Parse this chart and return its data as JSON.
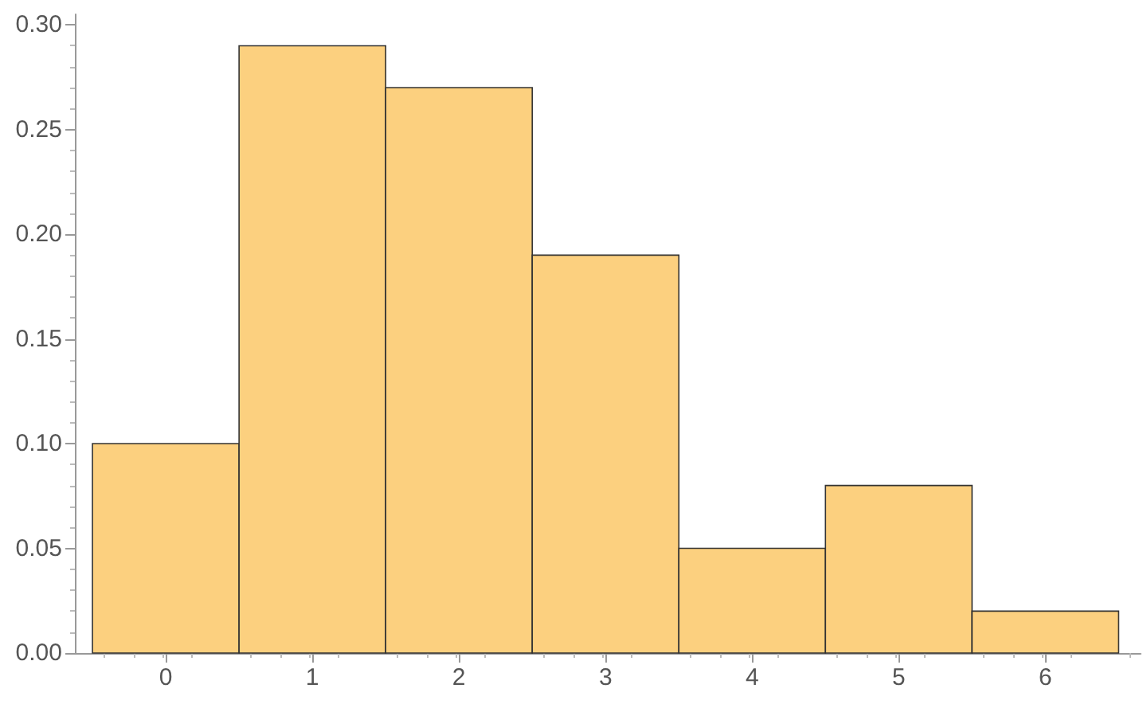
{
  "chart_data": {
    "type": "histogram",
    "bins": [
      -0.5,
      0.5,
      1.5,
      2.5,
      3.5,
      4.5,
      5.5,
      6.5
    ],
    "values": [
      0.1,
      0.29,
      0.27,
      0.19,
      0.05,
      0.08,
      0.02
    ],
    "color": "#fcd07f",
    "xlim": [
      -0.62,
      6.65
    ],
    "xticks": [
      0,
      1,
      2,
      3,
      4,
      5,
      6
    ],
    "ylim": [
      0,
      0.305
    ],
    "yticks": [
      {
        "value": 0,
        "label": "0.00"
      },
      {
        "value": 0.05,
        "label": "0.05"
      },
      {
        "value": 0.1,
        "label": "0.10"
      },
      {
        "value": 0.15,
        "label": "0.15"
      },
      {
        "value": 0.2,
        "label": "0.20"
      },
      {
        "value": 0.25,
        "label": "0.25"
      },
      {
        "value": 0.3,
        "label": "0.30"
      }
    ],
    "grid": false
  }
}
